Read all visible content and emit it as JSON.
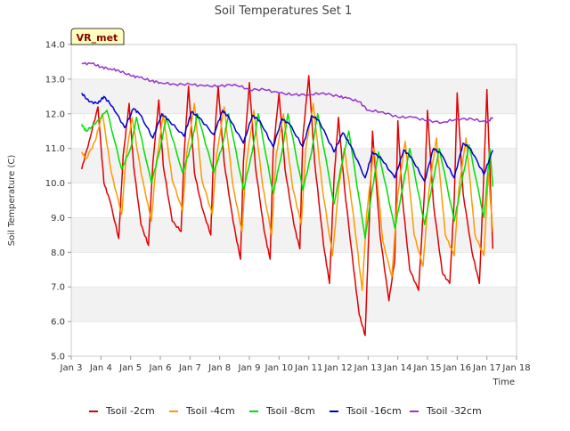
{
  "chart_data": {
    "type": "line",
    "title": "Soil Temperatures Set 1",
    "xlabel": "Time",
    "ylabel": "Soil Temperature (C)",
    "ylim": [
      5.0,
      14.0
    ],
    "y_ticks": [
      5.0,
      6.0,
      7.0,
      8.0,
      9.0,
      10.0,
      11.0,
      12.0,
      13.0,
      14.0
    ],
    "x_range_days": [
      3,
      18
    ],
    "x_ticks": [
      {
        "day": 3,
        "label": "Jan 3"
      },
      {
        "day": 4,
        "label": "Jan 4"
      },
      {
        "day": 5,
        "label": "Jan 5"
      },
      {
        "day": 6,
        "label": "Jan 6"
      },
      {
        "day": 7,
        "label": "Jan 7"
      },
      {
        "day": 8,
        "label": "Jan 8"
      },
      {
        "day": 9,
        "label": "Jan 9"
      },
      {
        "day": 10,
        "label": "Jan 10"
      },
      {
        "day": 11,
        "label": "Jan 11"
      },
      {
        "day": 12,
        "label": "Jan 12"
      },
      {
        "day": 13,
        "label": "Jan 13"
      },
      {
        "day": 14,
        "label": "Jan 14"
      },
      {
        "day": 15,
        "label": "Jan 15"
      },
      {
        "day": 16,
        "label": "Jan 16"
      },
      {
        "day": 17,
        "label": "Jan 17"
      },
      {
        "day": 18,
        "label": "Jan 18"
      }
    ],
    "grid": "horizontal alternating bands",
    "legend_position": "bottom",
    "annotation": "VR_met",
    "series": [
      {
        "name": "Tsoil -2cm",
        "color": "#e00000",
        "x": [
          3.35,
          3.6,
          3.9,
          4.1,
          4.3,
          4.6,
          4.75,
          4.95,
          5.1,
          5.35,
          5.6,
          5.75,
          5.95,
          6.1,
          6.4,
          6.7,
          6.8,
          6.95,
          7.15,
          7.4,
          7.7,
          7.8,
          7.95,
          8.15,
          8.45,
          8.7,
          8.8,
          9.0,
          9.2,
          9.5,
          9.7,
          9.8,
          10.0,
          10.2,
          10.5,
          10.7,
          10.8,
          11.0,
          11.2,
          11.5,
          11.7,
          11.85,
          12.0,
          12.2,
          12.5,
          12.7,
          12.9,
          13.0,
          13.15,
          13.4,
          13.7,
          13.9,
          14.0,
          14.15,
          14.4,
          14.7,
          14.9,
          15.0,
          15.2,
          15.5,
          15.75,
          15.9,
          16.0,
          16.2,
          16.5,
          16.75,
          16.9,
          17.0,
          17.2
        ],
        "values": [
          10.4,
          11.2,
          12.2,
          10.0,
          9.5,
          8.4,
          10.8,
          12.3,
          10.5,
          8.8,
          8.2,
          10.6,
          12.4,
          10.5,
          8.9,
          8.6,
          10.8,
          12.8,
          10.3,
          9.3,
          8.5,
          11.0,
          12.8,
          10.6,
          8.9,
          7.8,
          10.6,
          12.9,
          10.5,
          8.6,
          7.8,
          10.9,
          12.6,
          10.4,
          8.8,
          8.1,
          11.3,
          13.1,
          10.6,
          8.2,
          7.1,
          10.1,
          11.9,
          9.9,
          7.6,
          6.2,
          5.6,
          8.0,
          11.5,
          8.5,
          6.6,
          7.8,
          11.8,
          9.6,
          7.5,
          6.9,
          9.8,
          12.1,
          9.4,
          7.4,
          7.1,
          9.5,
          12.6,
          9.7,
          8.0,
          7.1,
          10.3,
          12.7,
          8.1
        ]
      },
      {
        "name": "Tsoil -4cm",
        "color": "#ff9900",
        "x": [
          3.35,
          3.5,
          3.8,
          4.05,
          4.35,
          4.7,
          4.85,
          5.05,
          5.35,
          5.7,
          5.85,
          6.1,
          6.4,
          6.75,
          6.9,
          7.15,
          7.4,
          7.75,
          7.9,
          8.15,
          8.45,
          8.75,
          8.9,
          9.15,
          9.45,
          9.75,
          9.9,
          10.15,
          10.45,
          10.75,
          10.9,
          11.15,
          11.45,
          11.8,
          12.0,
          12.2,
          12.5,
          12.8,
          12.95,
          13.2,
          13.5,
          13.8,
          14.0,
          14.25,
          14.55,
          14.85,
          15.05,
          15.3,
          15.6,
          15.9,
          16.05,
          16.3,
          16.6,
          16.9,
          17.05,
          17.2
        ],
        "values": [
          10.9,
          10.7,
          11.2,
          12.0,
          10.3,
          9.1,
          10.8,
          11.9,
          10.3,
          8.9,
          10.5,
          12.0,
          10.1,
          9.2,
          10.9,
          12.3,
          10.1,
          9.1,
          10.8,
          12.2,
          9.9,
          8.6,
          10.6,
          12.1,
          9.9,
          8.5,
          10.8,
          12.0,
          9.9,
          8.8,
          11.0,
          12.3,
          9.9,
          7.9,
          9.8,
          11.0,
          9.1,
          6.9,
          9.1,
          11.0,
          8.3,
          7.3,
          9.7,
          11.2,
          8.5,
          7.6,
          9.8,
          11.3,
          8.5,
          7.9,
          9.8,
          11.3,
          8.5,
          7.9,
          10.3,
          8.6
        ]
      },
      {
        "name": "Tsoil -8cm",
        "color": "#00e000",
        "x": [
          3.35,
          3.5,
          3.8,
          4.2,
          4.7,
          5.0,
          5.2,
          5.7,
          6.0,
          6.2,
          6.75,
          7.05,
          7.25,
          7.8,
          8.1,
          8.3,
          8.8,
          9.1,
          9.3,
          9.8,
          10.1,
          10.3,
          10.8,
          11.1,
          11.3,
          11.85,
          12.1,
          12.35,
          12.9,
          13.1,
          13.35,
          13.9,
          14.15,
          14.4,
          14.9,
          15.15,
          15.4,
          15.9,
          16.15,
          16.4,
          16.9,
          17.1,
          17.2
        ],
        "values": [
          11.7,
          11.5,
          11.7,
          12.1,
          10.4,
          11.0,
          11.9,
          10.0,
          11.0,
          11.9,
          10.3,
          11.1,
          12.0,
          10.3,
          11.1,
          12.0,
          9.8,
          10.9,
          12.0,
          9.7,
          10.9,
          12.0,
          9.8,
          10.9,
          12.0,
          9.4,
          10.5,
          11.5,
          8.4,
          9.6,
          10.9,
          8.7,
          9.8,
          11.0,
          8.8,
          9.9,
          11.0,
          8.9,
          10.0,
          11.1,
          9.0,
          11.0,
          9.9
        ]
      },
      {
        "name": "Tsoil -16cm",
        "color": "#0000cc",
        "x": [
          3.35,
          3.6,
          3.9,
          4.1,
          4.4,
          4.8,
          5.1,
          5.3,
          5.75,
          6.05,
          6.3,
          6.8,
          7.05,
          7.3,
          7.8,
          8.1,
          8.3,
          8.8,
          9.1,
          9.35,
          9.8,
          10.1,
          10.35,
          10.8,
          11.1,
          11.35,
          11.85,
          12.15,
          12.4,
          12.9,
          13.15,
          13.45,
          13.9,
          14.2,
          14.45,
          14.9,
          15.2,
          15.45,
          15.9,
          16.2,
          16.45,
          16.9,
          17.2
        ],
        "values": [
          12.6,
          12.35,
          12.3,
          12.5,
          12.2,
          11.6,
          12.15,
          12.0,
          11.3,
          12.0,
          11.8,
          11.35,
          12.05,
          11.9,
          11.4,
          12.1,
          11.9,
          11.15,
          11.95,
          11.8,
          11.05,
          11.85,
          11.7,
          11.05,
          11.95,
          11.8,
          10.9,
          11.45,
          11.1,
          10.15,
          10.9,
          10.7,
          10.15,
          10.95,
          10.75,
          10.05,
          11.0,
          10.85,
          10.15,
          11.15,
          11.0,
          10.25,
          10.95
        ]
      },
      {
        "name": "Tsoil -32cm",
        "color": "#9933cc",
        "x": [
          3.35,
          3.7,
          4.0,
          4.3,
          4.6,
          5.0,
          5.3,
          5.7,
          6.0,
          6.5,
          7.0,
          7.5,
          8.0,
          8.5,
          9.0,
          9.5,
          10.0,
          10.5,
          11.0,
          11.5,
          12.0,
          12.3,
          12.7,
          13.0,
          13.5,
          14.0,
          14.5,
          15.0,
          15.5,
          16.0,
          16.5,
          17.0,
          17.2
        ],
        "values": [
          13.45,
          13.45,
          13.35,
          13.3,
          13.25,
          13.1,
          13.05,
          12.95,
          12.9,
          12.85,
          12.85,
          12.8,
          12.8,
          12.85,
          12.7,
          12.7,
          12.6,
          12.55,
          12.55,
          12.6,
          12.5,
          12.45,
          12.35,
          12.1,
          12.05,
          11.9,
          11.9,
          11.8,
          11.75,
          11.85,
          11.85,
          11.75,
          11.9
        ]
      }
    ]
  }
}
